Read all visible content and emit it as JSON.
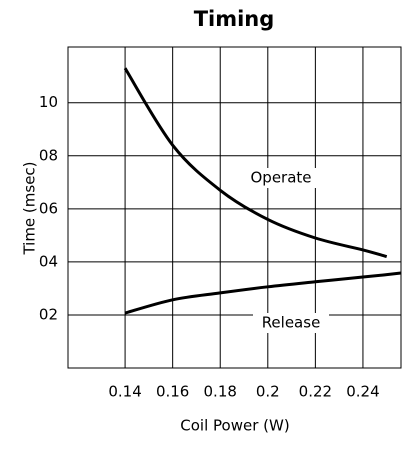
{
  "chart_data": {
    "type": "line",
    "title": "Timing",
    "x_label": "Coil Power (W)",
    "y_label": "Time (msec)",
    "x": [
      0.14,
      0.16,
      0.18,
      0.2,
      0.22,
      0.24,
      0.25,
      0.256
    ],
    "series": [
      {
        "name": "Operate",
        "color": "#000000",
        "values": [
          11.3,
          8.4,
          6.7,
          5.6,
          4.9,
          4.45,
          4.2,
          null
        ]
      },
      {
        "name": "Release",
        "color": "#000000",
        "values": [
          2.07,
          2.57,
          2.83,
          3.06,
          3.25,
          3.43,
          3.52,
          3.58
        ]
      }
    ],
    "xlim": [
      0.116,
      0.256
    ],
    "xticks": [
      0.14,
      0.16,
      0.18,
      0.2,
      0.22,
      0.24
    ],
    "ylim": [
      0,
      12.1
    ],
    "yticks": [
      {
        "value": 2,
        "label": "02"
      },
      {
        "value": 4,
        "label": "04"
      },
      {
        "value": 6,
        "label": "06"
      },
      {
        "value": 8,
        "label": "08"
      },
      10
    ],
    "grid": true
  }
}
